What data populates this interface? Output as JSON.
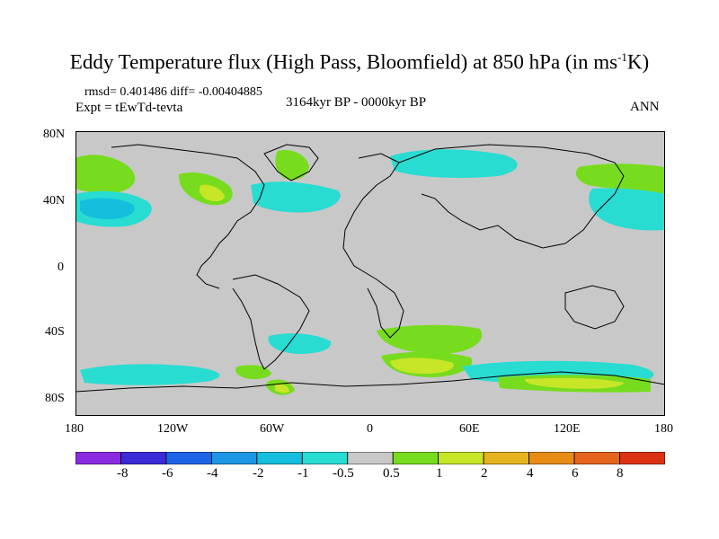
{
  "title": {
    "main": "Eddy Temperature flux (High Pass, Bloomfield) at 850 hPa (in ms",
    "exponent": "-1",
    "end": "K)"
  },
  "header": {
    "stats": "rmsd= 0.401486 diff= -0.00404885",
    "experiment": "Expt = tEwTd-tevta",
    "period": "3164kyr BP - 0000kyr BP",
    "season": "ANN"
  },
  "axes": {
    "y_ticks": [
      "80N",
      "40N",
      "0",
      "40S",
      "80S"
    ],
    "x_ticks": [
      "180",
      "120W",
      "60W",
      "0",
      "60E",
      "120E",
      "180"
    ]
  },
  "colorbar": {
    "levels": [
      "-8",
      "-6",
      "-4",
      "-2",
      "-1",
      "-0.5",
      "0.5",
      "1",
      "2",
      "4",
      "6",
      "8"
    ],
    "colors": [
      "#8a2be2",
      "#3a2ad8",
      "#1e64e6",
      "#1e96e6",
      "#14bedc",
      "#28dcd2",
      "#c8c8c8",
      "#78dc1e",
      "#c8e628",
      "#e6b41e",
      "#e68c14",
      "#e6641e",
      "#dc3214"
    ]
  },
  "colors": {
    "background": "#c8c8c8",
    "coast": "#000000"
  }
}
